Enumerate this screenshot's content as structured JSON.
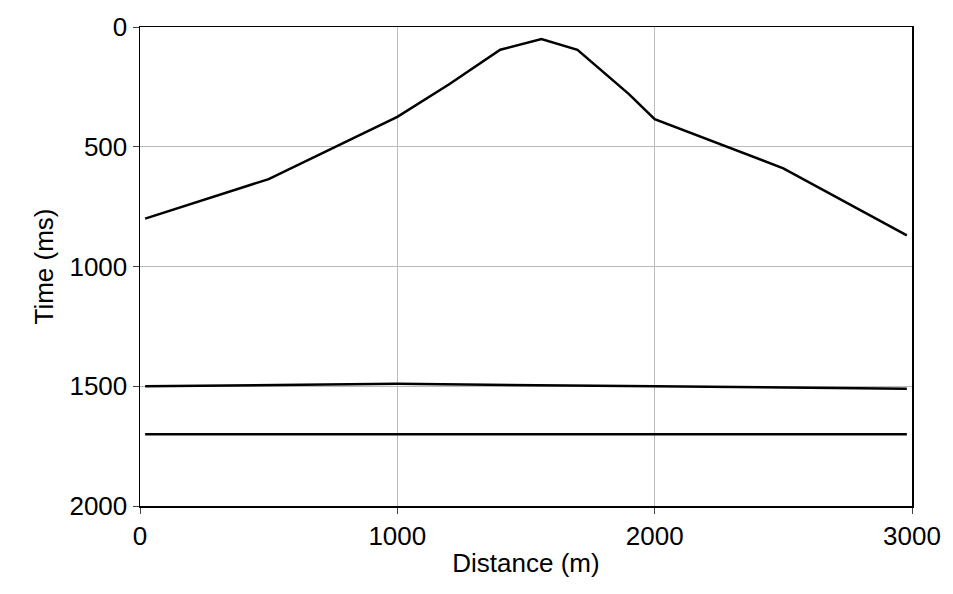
{
  "chart_data": {
    "type": "line",
    "x_label": "Distance (m)",
    "y_label": "Time (ms)",
    "xlim": [
      0,
      3000
    ],
    "ylim": [
      2000,
      0
    ],
    "xticks": [
      0,
      1000,
      2000,
      3000
    ],
    "yticks": [
      0,
      500,
      1000,
      1500,
      2000
    ],
    "grid": true,
    "series": [
      {
        "color": "#000000",
        "line_style": "solid",
        "x": [
          20,
          500,
          1000,
          1200,
          1400,
          1560,
          1700,
          1900,
          2000,
          2500,
          2980
        ],
        "values": [
          800,
          635,
          375,
          240,
          95,
          50,
          95,
          280,
          385,
          590,
          870
        ]
      },
      {
        "color": "#000000",
        "line_style": "solid",
        "x": [
          20,
          1000,
          2000,
          2980
        ],
        "values": [
          1500,
          1490,
          1500,
          1510
        ]
      },
      {
        "color": "#000000",
        "line_style": "solid",
        "x": [
          20,
          1000,
          2000,
          2980
        ],
        "values": [
          1700,
          1700,
          1700,
          1700
        ]
      }
    ]
  }
}
